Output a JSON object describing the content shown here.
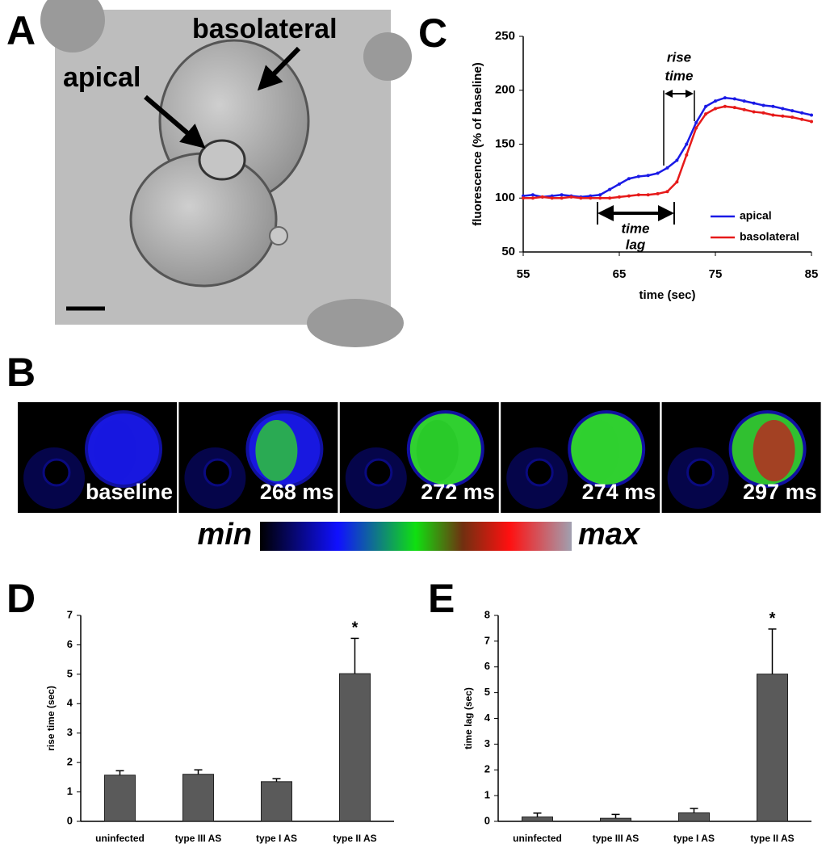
{
  "panels": {
    "A": {
      "letter": "A",
      "labels": [
        "basolateral",
        "apical"
      ]
    },
    "B": {
      "letter": "B",
      "frames": [
        "baseline",
        "268 ms",
        "272 ms",
        "274 ms",
        "297 ms"
      ],
      "scale": [
        "min",
        "max"
      ]
    }
  },
  "chart_data": [
    {
      "type": "line",
      "panel": "C",
      "x_label": "time (sec)",
      "y_label": "fluorescence (% of baseline)",
      "x": [
        55,
        56,
        57,
        58,
        59,
        60,
        61,
        62,
        63,
        64,
        65,
        66,
        67,
        68,
        69,
        70,
        71,
        72,
        73,
        74,
        75,
        76,
        77,
        78,
        79,
        80,
        81,
        82,
        83,
        84,
        85
      ],
      "series": [
        {
          "name": "apical",
          "color": "#1a1ae6",
          "values": [
            102,
            103,
            101,
            102,
            103,
            102,
            101,
            102,
            103,
            108,
            113,
            118,
            120,
            121,
            123,
            128,
            135,
            150,
            170,
            185,
            190,
            193,
            192,
            190,
            188,
            186,
            185,
            183,
            181,
            179,
            177
          ]
        },
        {
          "name": "basolateral",
          "color": "#e61a1a",
          "values": [
            100,
            100,
            101,
            100,
            100,
            101,
            100,
            100,
            100,
            100,
            101,
            102,
            103,
            103,
            104,
            106,
            115,
            140,
            165,
            178,
            183,
            185,
            184,
            182,
            180,
            179,
            177,
            176,
            175,
            173,
            171
          ]
        }
      ],
      "xlim": [
        55,
        85
      ],
      "xticks": [
        55,
        65,
        75,
        85
      ],
      "ylim": [
        50,
        250
      ],
      "yticks": [
        50,
        100,
        150,
        200,
        250
      ],
      "annotations": [
        [
          "rise",
          "time"
        ],
        [
          "time",
          "lag"
        ]
      ],
      "legend": "lower right"
    },
    {
      "type": "bar",
      "panel": "D",
      "y_label": "rise time (sec)",
      "categories": [
        "uninfected",
        "type III AS",
        "type I AS",
        "type II AS"
      ],
      "values": [
        1.57,
        1.6,
        1.35,
        5.02
      ],
      "errors": [
        0.15,
        0.15,
        0.1,
        1.2
      ],
      "color": "#5a5a5a",
      "ylim": [
        0,
        7
      ],
      "yticks": [
        0,
        1,
        2,
        3,
        4,
        5,
        6,
        7
      ],
      "annotation": "*"
    },
    {
      "type": "bar",
      "panel": "E",
      "y_label": "time lag (sec)",
      "categories": [
        "uninfected",
        "type III AS",
        "type I AS",
        "type II AS"
      ],
      "values": [
        0.17,
        0.12,
        0.33,
        5.72
      ],
      "errors": [
        0.15,
        0.15,
        0.17,
        1.75
      ],
      "color": "#5a5a5a",
      "ylim": [
        0,
        8
      ],
      "yticks": [
        0,
        1,
        2,
        3,
        4,
        5,
        6,
        7,
        8
      ],
      "annotation": "*"
    }
  ]
}
